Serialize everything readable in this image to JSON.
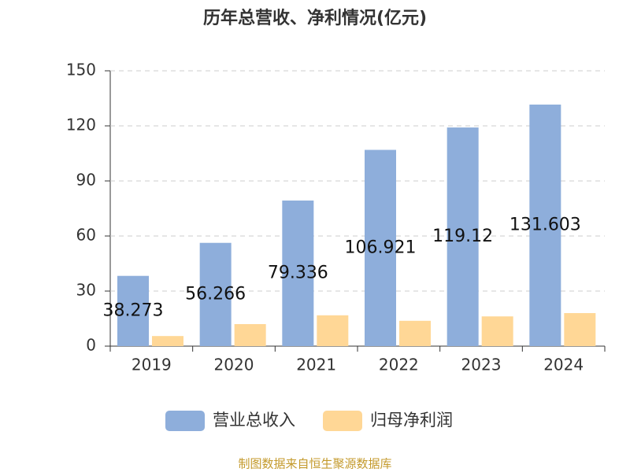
{
  "chart_data": {
    "type": "bar",
    "title": "历年总营收、净利情况(亿元)",
    "categories": [
      "2019",
      "2020",
      "2021",
      "2022",
      "2023",
      "2024"
    ],
    "series": [
      {
        "name": "营业总收入",
        "color": "#8eaedb",
        "values": [
          38.273,
          56.266,
          79.336,
          106.921,
          119.12,
          131.603
        ],
        "show_labels": true
      },
      {
        "name": "归母净利润",
        "color": "#ffd796",
        "values": [
          5.5,
          12,
          16.8,
          13.8,
          16.2,
          18
        ],
        "show_labels": false
      }
    ],
    "ylim": [
      0,
      150
    ],
    "yticks": [
      0,
      30,
      60,
      90,
      120,
      150
    ],
    "grid": true,
    "legend": "bottom",
    "source": "制图数据来自恒生聚源数据库"
  }
}
